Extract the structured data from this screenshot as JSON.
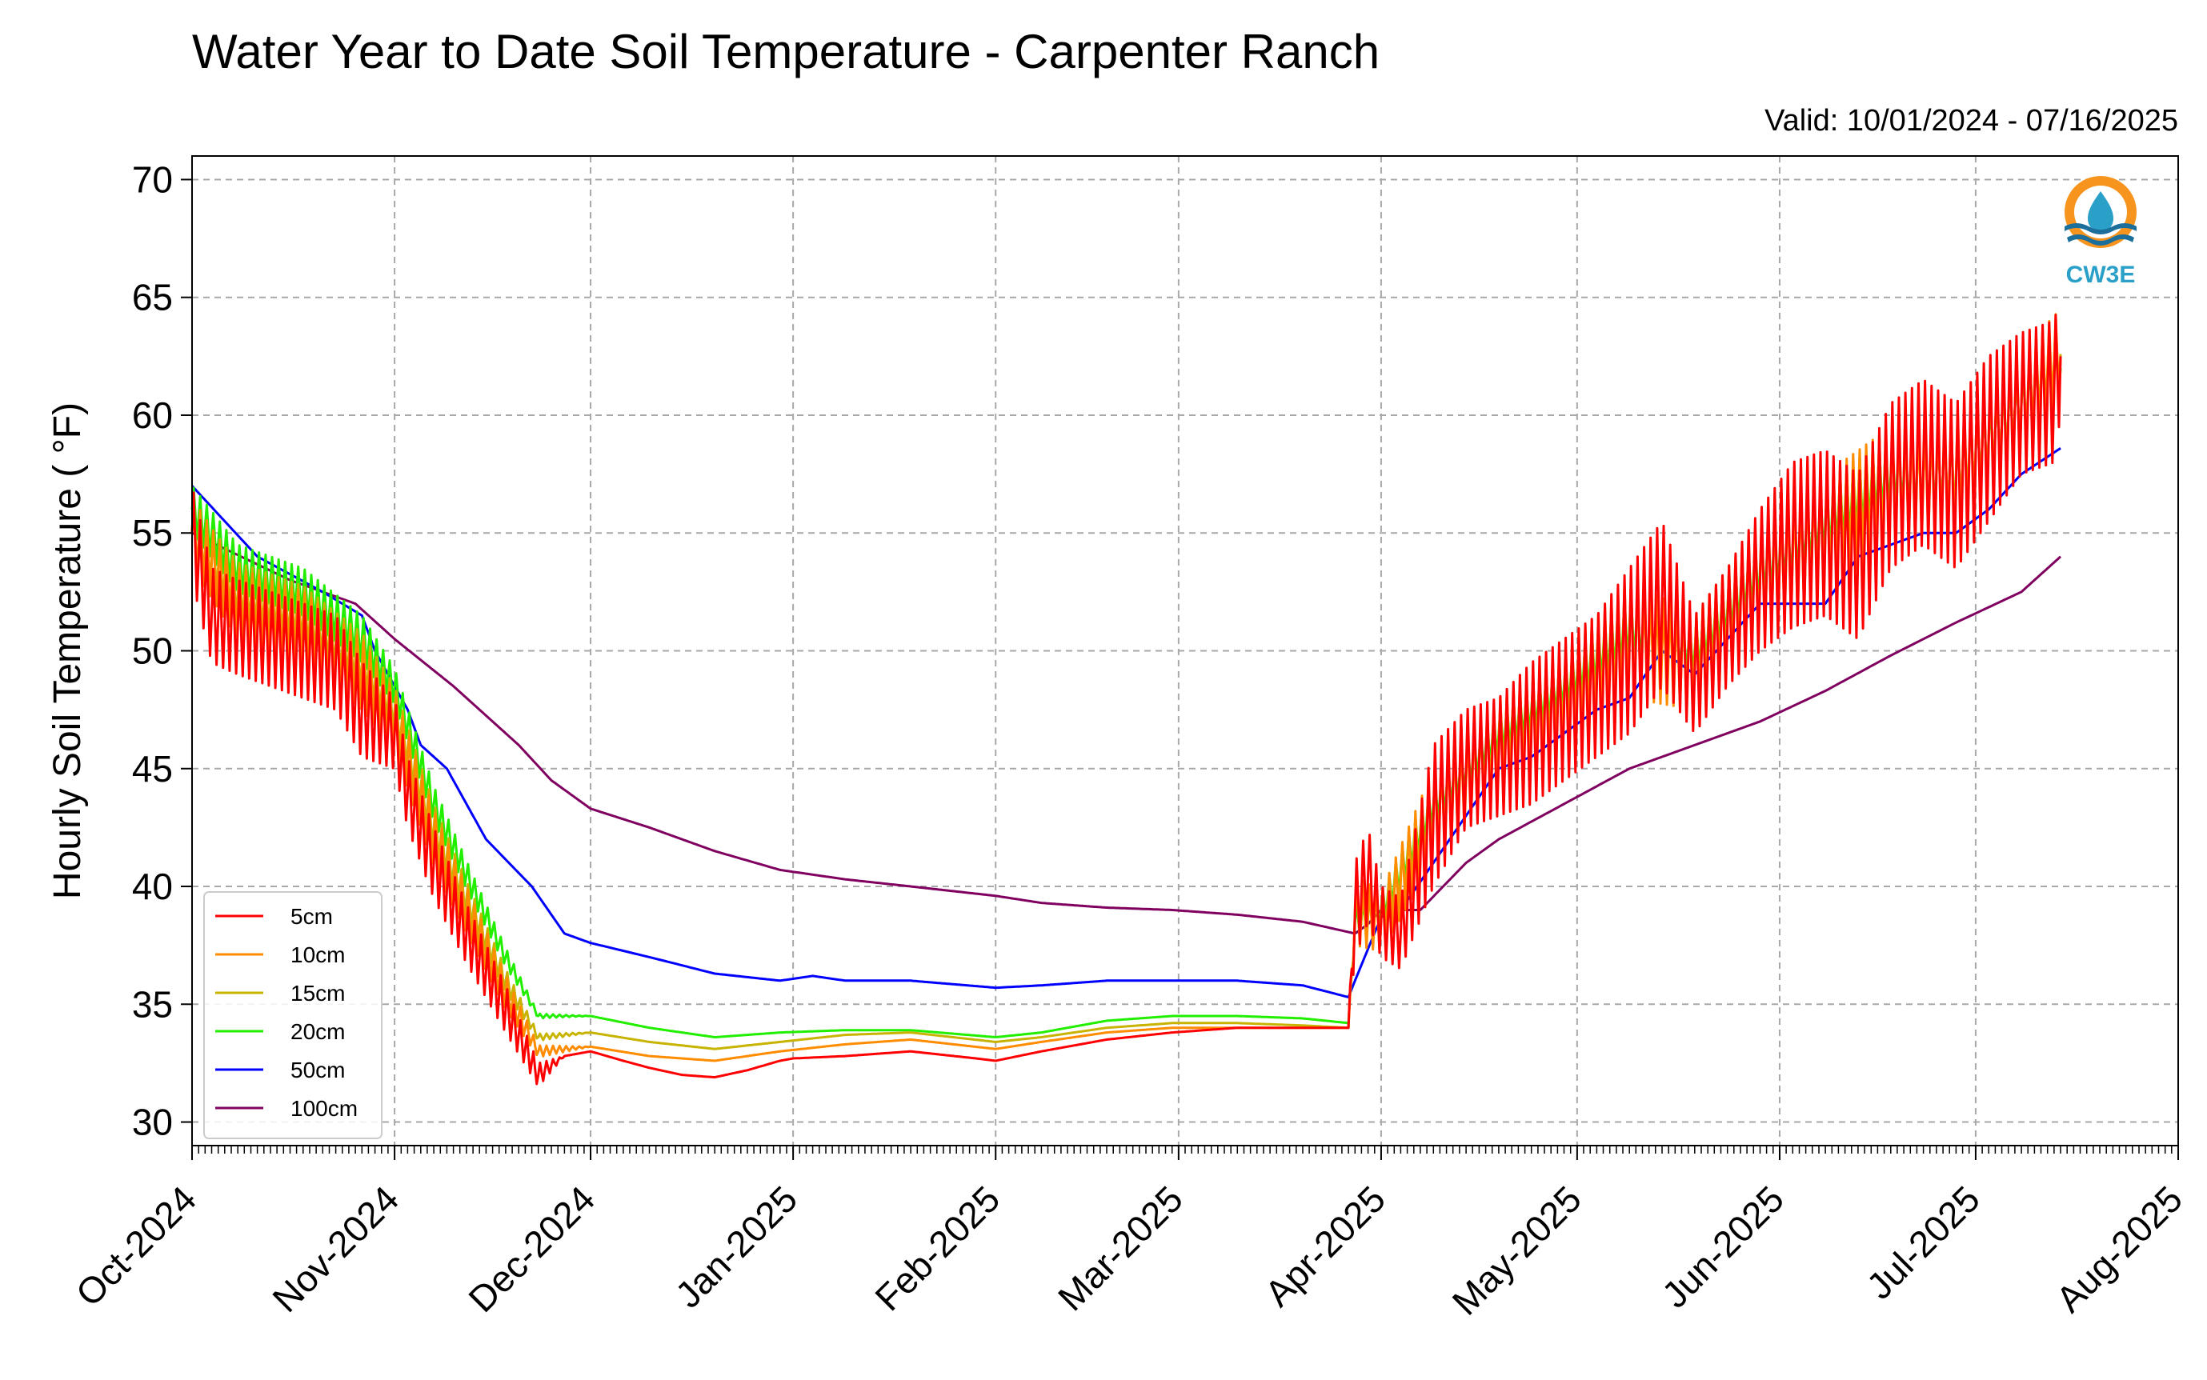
{
  "chart_data": {
    "type": "line",
    "title": "Water Year to Date Soil Temperature - Carpenter Ranch",
    "subtitle": "Valid: 10/01/2024 - 07/16/2025",
    "ylabel": "Hourly Soil Temperature ( °F)",
    "xlabel": "",
    "ylim": [
      29,
      71
    ],
    "yticks": [
      30,
      35,
      40,
      45,
      50,
      55,
      60,
      65,
      70
    ],
    "x_ticks": [
      "Oct-2024",
      "Nov-2024",
      "Dec-2024",
      "Jan-2025",
      "Feb-2025",
      "Mar-2025",
      "Apr-2025",
      "May-2025",
      "Jun-2025",
      "Jul-2025",
      "Aug-2025"
    ],
    "x_tick_days": [
      0,
      31,
      61,
      92,
      123,
      151,
      182,
      212,
      243,
      273,
      304
    ],
    "xlim_days": [
      0,
      304
    ],
    "grid": true,
    "legend_position": "lower-left",
    "logo_text": "CW3E",
    "series": [
      {
        "name": "5cm",
        "color": "#ff0000",
        "x_days": [
          0,
          3,
          7,
          12,
          17,
          22,
          26,
          31,
          33,
          37,
          42,
          48,
          53,
          57,
          61,
          66,
          70,
          75,
          80,
          85,
          90,
          92,
          100,
          110,
          120,
          123,
          130,
          140,
          150,
          160,
          170,
          177,
          178,
          180,
          182,
          185,
          190,
          195,
          200,
          205,
          210,
          215,
          220,
          225,
          230,
          235,
          240,
          245,
          250,
          255,
          260,
          265,
          270,
          275,
          280,
          285,
          286
        ],
        "y": [
          55.0,
          51.5,
          51.0,
          50.5,
          50.0,
          49.5,
          47.5,
          46.5,
          44.0,
          41.0,
          38.0,
          34.8,
          32.0,
          32.8,
          33.0,
          32.6,
          32.3,
          32.0,
          31.9,
          32.2,
          32.6,
          32.7,
          32.8,
          33.0,
          32.7,
          32.6,
          33.0,
          33.5,
          33.8,
          34.0,
          34.0,
          34.0,
          39.0,
          40.5,
          38.5,
          38.0,
          43.0,
          45.0,
          45.5,
          46.5,
          47.5,
          48.5,
          50.0,
          52.0,
          49.0,
          51.0,
          53.0,
          54.5,
          55.0,
          54.0,
          57.0,
          58.0,
          57.0,
          59.0,
          60.5,
          61.0,
          62.5
        ],
        "amplitude": [
          4,
          4,
          4,
          4,
          4,
          4,
          4,
          3,
          3,
          3,
          2.5,
          2,
          1,
          0,
          0,
          0,
          0,
          0,
          0,
          0,
          0,
          0,
          0,
          0,
          0,
          0,
          0,
          0,
          0,
          0,
          0,
          0,
          4,
          4,
          3,
          3,
          6,
          5,
          5,
          6,
          6,
          6,
          7,
          7,
          5,
          5,
          6,
          7,
          7,
          7,
          7,
          7,
          7,
          7,
          6,
          6,
          5
        ]
      },
      {
        "name": "10cm",
        "color": "#ff8c00",
        "x_days": [
          0,
          7,
          17,
          26,
          31,
          37,
          42,
          48,
          53,
          61,
          70,
          80,
          90,
          100,
          110,
          123,
          130,
          140,
          150,
          160,
          170,
          177,
          178,
          182,
          190,
          200,
          210,
          220,
          230,
          240,
          250,
          260,
          270,
          280,
          286
        ],
        "y": [
          55.0,
          52.0,
          51.0,
          49.0,
          47.0,
          42.0,
          39.0,
          35.5,
          33.0,
          33.2,
          32.8,
          32.6,
          33.0,
          33.3,
          33.5,
          33.1,
          33.4,
          33.8,
          34.0,
          34.0,
          34.0,
          34.0,
          39.0,
          38.5,
          43.0,
          46.0,
          48.0,
          50.5,
          49.5,
          53.0,
          55.0,
          57.0,
          57.5,
          60.5,
          62.5
        ],
        "amplitude": [
          3,
          3,
          3,
          3,
          2.5,
          2.5,
          2,
          1.5,
          0.5,
          0,
          0,
          0,
          0,
          0,
          0,
          0,
          0,
          0,
          0,
          0,
          0,
          0,
          3,
          2.5,
          4,
          4,
          4,
          5,
          4,
          5,
          5,
          5,
          5,
          4.5,
          4
        ]
      },
      {
        "name": "15cm",
        "color": "#c8b400",
        "x_days": [
          0,
          7,
          17,
          26,
          31,
          37,
          42,
          48,
          53,
          61,
          70,
          80,
          90,
          100,
          110,
          123,
          130,
          140,
          150,
          160,
          170,
          177,
          178,
          182,
          190,
          200,
          210,
          220,
          230,
          240,
          250,
          260,
          270,
          280,
          286
        ],
        "y": [
          55.0,
          52.5,
          51.5,
          49.5,
          47.5,
          42.5,
          39.5,
          36.0,
          33.6,
          33.8,
          33.4,
          33.1,
          33.4,
          33.7,
          33.8,
          33.4,
          33.6,
          34.0,
          34.2,
          34.2,
          34.1,
          34.0,
          38.8,
          38.8,
          43.2,
          46.2,
          48.2,
          50.6,
          49.8,
          53.2,
          55.2,
          57.2,
          57.6,
          60.6,
          62.6
        ],
        "amplitude": [
          2.5,
          2.5,
          2.5,
          2.5,
          2,
          2,
          1.5,
          1,
          0.3,
          0,
          0,
          0,
          0,
          0,
          0,
          0,
          0,
          0,
          0,
          0,
          0,
          0,
          2,
          2,
          3,
          3,
          3,
          4,
          3,
          4,
          4,
          4,
          4,
          3.5,
          3
        ]
      },
      {
        "name": "20cm",
        "color": "#22ee00",
        "x_days": [
          0,
          7,
          17,
          26,
          31,
          37,
          42,
          48,
          53,
          61,
          70,
          80,
          90,
          100,
          110,
          123,
          130,
          140,
          150,
          160,
          170,
          177,
          178,
          182,
          190,
          200,
          210,
          220,
          230,
          240,
          250,
          260,
          270,
          280,
          286
        ],
        "y": [
          56.0,
          53.5,
          52.5,
          50.5,
          48.5,
          43.5,
          40.5,
          37.0,
          34.5,
          34.5,
          34.0,
          33.6,
          33.8,
          33.9,
          33.9,
          33.6,
          33.8,
          34.3,
          34.5,
          34.5,
          34.4,
          34.2,
          38.5,
          39.0,
          43.5,
          46.5,
          48.5,
          51.0,
          50.0,
          53.5,
          55.5,
          57.5,
          57.5,
          60.5,
          62.0
        ],
        "amplitude": [
          2,
          2,
          2,
          2,
          1.5,
          1.5,
          1.2,
          0.8,
          0.2,
          0,
          0,
          0,
          0,
          0,
          0,
          0,
          0,
          0,
          0,
          0,
          0,
          0,
          1.5,
          1.5,
          2,
          2,
          2,
          3,
          2,
          3,
          3,
          3,
          3,
          2.5,
          2
        ]
      },
      {
        "name": "50cm",
        "color": "#0000ff",
        "x_days": [
          0,
          10,
          20,
          26,
          28,
          33,
          35,
          39,
          45,
          52,
          57,
          61,
          70,
          80,
          90,
          95,
          100,
          110,
          123,
          130,
          140,
          150,
          160,
          170,
          177,
          178,
          182,
          185,
          190,
          195,
          200,
          205,
          210,
          215,
          220,
          225,
          230,
          235,
          240,
          245,
          250,
          255,
          260,
          265,
          270,
          275,
          280,
          286
        ],
        "y": [
          57.0,
          54.0,
          52.5,
          51.5,
          50.0,
          47.5,
          46.0,
          45.0,
          42.0,
          40.0,
          38.0,
          37.6,
          37.0,
          36.3,
          36.0,
          36.2,
          36.0,
          36.0,
          35.7,
          35.8,
          36.0,
          36.0,
          36.0,
          35.8,
          35.3,
          36.0,
          38.7,
          39.0,
          41.0,
          43.0,
          45.0,
          45.5,
          46.5,
          47.5,
          48.0,
          50.0,
          49.0,
          50.5,
          52.0,
          52.0,
          52.0,
          54.0,
          54.5,
          55.0,
          55.0,
          56.0,
          57.5,
          58.6
        ],
        "amplitude": [
          0
        ]
      },
      {
        "name": "100cm",
        "color": "#800060",
        "x_days": [
          0,
          15,
          25,
          31,
          40,
          50,
          55,
          61,
          70,
          80,
          90,
          100,
          110,
          123,
          130,
          140,
          150,
          160,
          170,
          178,
          180,
          182,
          188,
          195,
          200,
          210,
          220,
          230,
          240,
          250,
          260,
          270,
          280,
          286
        ],
        "y": [
          55.0,
          53.0,
          52.0,
          50.5,
          48.5,
          46.0,
          44.5,
          43.3,
          42.5,
          41.5,
          40.7,
          40.3,
          40.0,
          39.6,
          39.3,
          39.1,
          39.0,
          38.8,
          38.5,
          38.0,
          38.4,
          39.0,
          39.0,
          41.0,
          42.0,
          43.5,
          45.0,
          46.0,
          47.0,
          48.3,
          49.8,
          51.2,
          52.5,
          54.0
        ],
        "amplitude": [
          0
        ]
      }
    ]
  }
}
